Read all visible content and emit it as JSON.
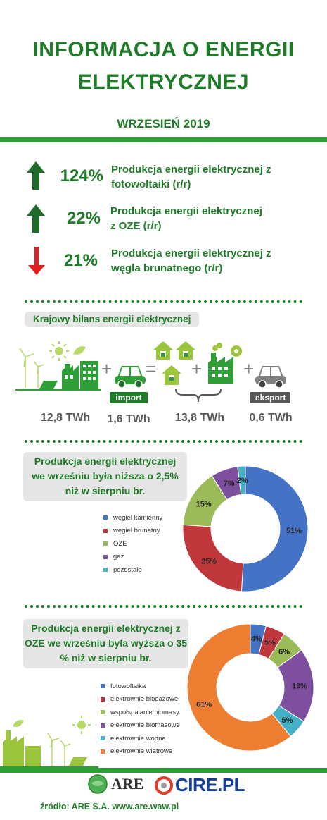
{
  "header": {
    "title_line1": "INFORMACJA O ENERGII",
    "title_line2": "ELEKTRYCZNEJ",
    "subtitle": "WRZESIEŃ 2019"
  },
  "stats": [
    {
      "value": "124%",
      "text_line1": "Produkcja energii elektrycznej z",
      "text_line2": "fotowoltaiki (r/r)",
      "direction": "up",
      "color": "#1e6b2b"
    },
    {
      "value": "22%",
      "text_line1": "Produkcja energii elektrycznej",
      "text_line2": "z OZE (r/r)",
      "direction": "up",
      "color": "#1e6b2b"
    },
    {
      "value": "21%",
      "text_line1": "Produkcja energii elektrycznej z",
      "text_line2": "węgla brunatnego  (r/r)",
      "direction": "down",
      "color": "#e02020"
    }
  ],
  "balance": {
    "heading": "Krajowy bilans energii elektrycznej",
    "import_label": "import",
    "export_label": "eksport",
    "values": [
      "12,8 TWh",
      "1,6 TWh",
      "13,8 TWh",
      "0,6 TWh"
    ],
    "operators": [
      "+",
      "=",
      "+",
      "+"
    ]
  },
  "production": {
    "note_line1": "Produkcja energii elektrycznej",
    "note_line2": "we wrześniu była niższa o 2,5%",
    "note_line3": "niż w sierpniu br."
  },
  "oze": {
    "note_line1": "Produkcja energii elektrycznej z",
    "note_line2": "OZE we wrześniu była wyższa o 35",
    "note_line3": "% niż w sierpniu br."
  },
  "chart_data": [
    {
      "type": "pie",
      "donut": true,
      "categories": [
        "węgiel kamienny",
        "węgiel brunatny",
        "OZE",
        "gaz",
        "pozostałe"
      ],
      "values": [
        51,
        25,
        15,
        7,
        2
      ],
      "data_labels": [
        "51%",
        "25%",
        "15%",
        "7%",
        "2%"
      ],
      "colors": [
        "#4472c4",
        "#c0373c",
        "#9bbb59",
        "#7d4f9e",
        "#46b0c6"
      ],
      "legend_position": "left"
    },
    {
      "type": "pie",
      "donut": true,
      "categories": [
        "fotowoltaika",
        "elektrownie biogazowe",
        "współspalanie biomasy",
        "elektrownie biomasowe",
        "elektrownie wodne",
        "elektrownie wiatrowe"
      ],
      "values": [
        4,
        5,
        6,
        19,
        5,
        61
      ],
      "data_labels": [
        "4%",
        "5%",
        "6%",
        "19%",
        "5%",
        "61%"
      ],
      "colors": [
        "#4472c4",
        "#c0373c",
        "#9bbb59",
        "#7d4f9e",
        "#46b0c6",
        "#ed7d31"
      ],
      "legend_position": "left"
    }
  ],
  "footer": {
    "logo_are": "ARE",
    "logo_cire": "CIRE.PL",
    "source": "źródło: ARE S.A. www.are.waw.pl"
  }
}
